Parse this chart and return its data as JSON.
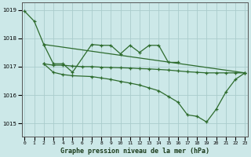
{
  "title": "Graphe pression niveau de la mer (hPa)",
  "background_color": "#cce8e8",
  "grid_color": "#aacccc",
  "line_color": "#2d6b2d",
  "xlim": [
    -0.3,
    23.3
  ],
  "ylim": [
    1014.55,
    1019.25
  ],
  "yticks": [
    1015,
    1016,
    1017,
    1018,
    1019
  ],
  "xtick_labels": [
    "0",
    "1",
    "2",
    "3",
    "4",
    "5",
    "6",
    "7",
    "8",
    "9",
    "10",
    "11",
    "12",
    "13",
    "14",
    "15",
    "16",
    "17",
    "18",
    "19",
    "20",
    "21",
    "22",
    "23"
  ],
  "lines": [
    {
      "x": [
        0,
        1,
        2,
        23
      ],
      "y": [
        1018.95,
        1018.6,
        1017.78,
        1016.78
      ],
      "style": "-",
      "marker": "+"
    },
    {
      "x": [
        2,
        3,
        4,
        5,
        7,
        8,
        9,
        10,
        11,
        12,
        13,
        14,
        15,
        16
      ],
      "y": [
        1017.78,
        1017.1,
        1017.1,
        1016.8,
        1017.78,
        1017.75,
        1017.75,
        1017.45,
        1017.75,
        1017.5,
        1017.75,
        1017.75,
        1017.15,
        1017.15
      ],
      "style": "-",
      "marker": "+"
    },
    {
      "x": [
        2,
        3,
        4,
        5,
        6,
        7,
        8,
        9,
        10,
        11,
        12,
        13,
        14,
        15,
        16,
        17,
        18,
        19,
        20,
        21,
        22,
        23
      ],
      "y": [
        1017.1,
        1017.05,
        1017.05,
        1017.02,
        1017.0,
        1017.0,
        1016.98,
        1016.97,
        1016.96,
        1016.95,
        1016.93,
        1016.92,
        1016.9,
        1016.88,
        1016.85,
        1016.82,
        1016.8,
        1016.78,
        1016.78,
        1016.78,
        1016.78,
        1016.78
      ],
      "style": "-",
      "marker": "+"
    },
    {
      "x": [
        2,
        3,
        4,
        5,
        7,
        8,
        9,
        10,
        11,
        12,
        13,
        14,
        15,
        16,
        17,
        18,
        19,
        20,
        21,
        22,
        23
      ],
      "y": [
        1017.1,
        1016.8,
        1016.72,
        1016.68,
        1016.65,
        1016.6,
        1016.55,
        1016.48,
        1016.42,
        1016.35,
        1016.25,
        1016.15,
        1015.95,
        1015.75,
        1015.3,
        1015.25,
        1015.05,
        1015.5,
        1016.1,
        1016.55,
        1016.78
      ],
      "style": "-",
      "marker": "+"
    }
  ]
}
